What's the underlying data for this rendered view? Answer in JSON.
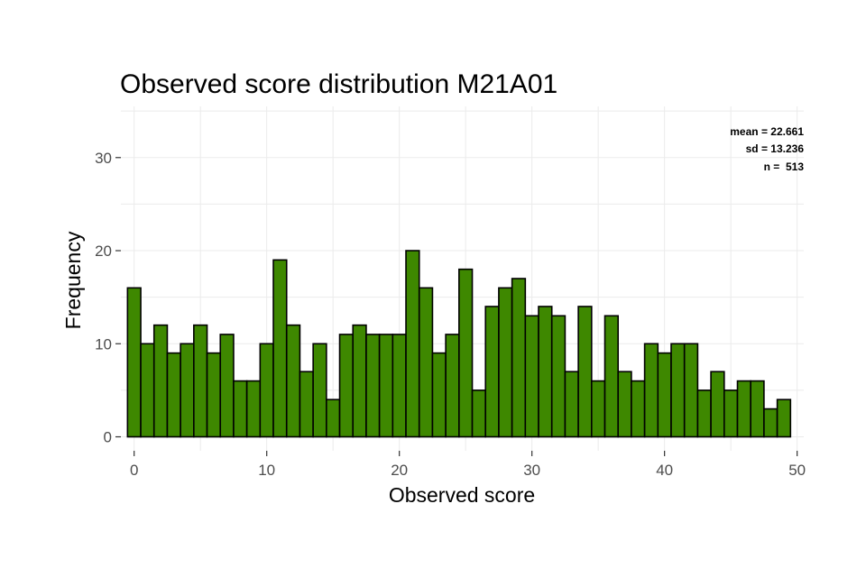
{
  "chart_data": {
    "type": "bar",
    "title": "Observed score distribution M21A01",
    "xlabel": "Observed score",
    "ylabel": "Frequency",
    "xlim": [
      -1,
      50.5
    ],
    "ylim": [
      -1.5,
      35.5
    ],
    "x_ticks": [
      0,
      10,
      20,
      30,
      40,
      50
    ],
    "y_ticks": [
      0,
      10,
      20,
      30
    ],
    "bin_width": 1,
    "grid": true,
    "colors": {
      "bar_fill": "#3e8800",
      "bar_stroke": "#000000",
      "grid": "#ebebeb"
    },
    "x": [
      0,
      1,
      2,
      3,
      4,
      5,
      6,
      7,
      8,
      9,
      10,
      11,
      12,
      13,
      14,
      15,
      16,
      17,
      18,
      19,
      20,
      21,
      22,
      23,
      24,
      25,
      26,
      27,
      28,
      29,
      30,
      31,
      32,
      33,
      34,
      35,
      36,
      37,
      38,
      39,
      40,
      41,
      42,
      43,
      44,
      45,
      46,
      47,
      48,
      49
    ],
    "values": [
      16,
      10,
      12,
      9,
      10,
      12,
      9,
      11,
      6,
      6,
      10,
      19,
      12,
      7,
      10,
      4,
      11,
      12,
      11,
      11,
      11,
      20,
      16,
      9,
      11,
      18,
      5,
      14,
      16,
      17,
      13,
      14,
      13,
      7,
      14,
      6,
      13,
      7,
      6,
      10,
      9,
      10,
      10,
      5,
      7,
      5,
      6,
      6,
      3,
      4
    ],
    "stats": {
      "placement": "top-right",
      "lines": [
        "mean = 22.661",
        "sd = 13.236",
        "n =  513"
      ]
    }
  }
}
